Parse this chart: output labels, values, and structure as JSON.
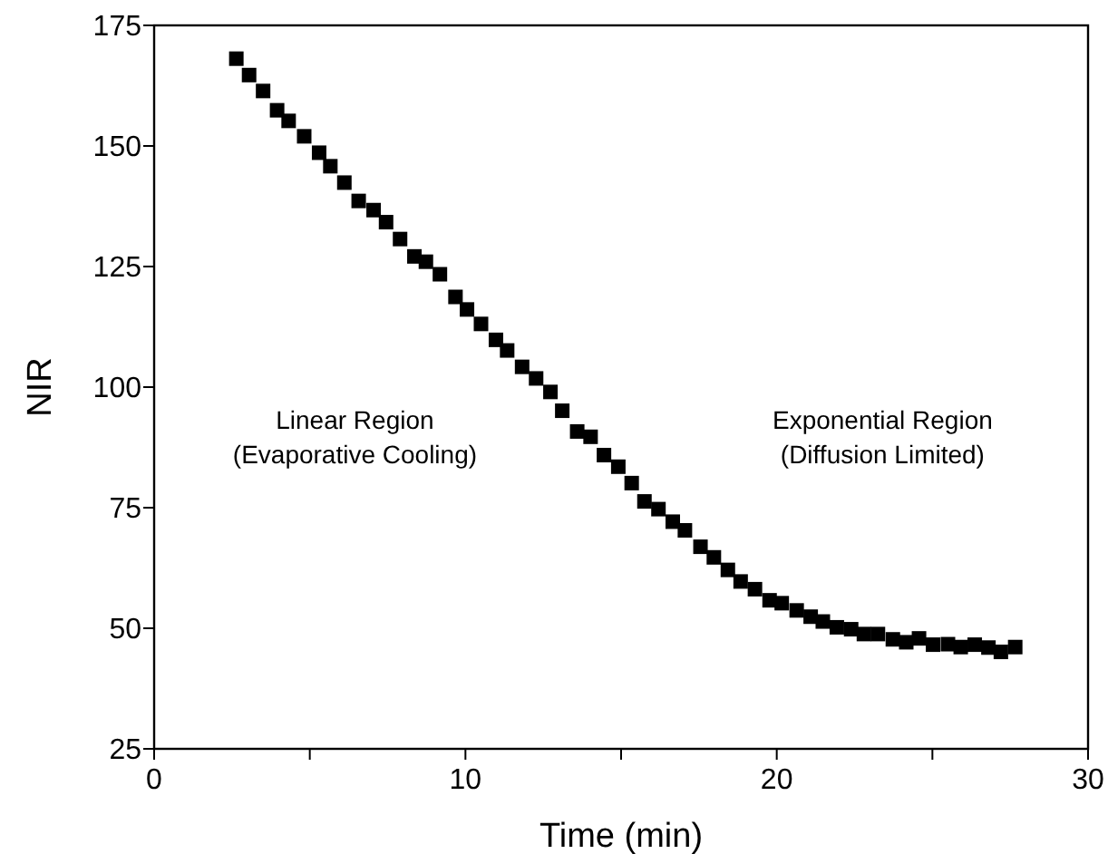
{
  "chart_data": {
    "type": "scatter",
    "xlabel": "Time (min)",
    "ylabel": "NIR",
    "x": [
      2.64,
      3.05,
      3.5,
      3.95,
      4.32,
      4.82,
      5.3,
      5.66,
      6.11,
      6.57,
      7.05,
      7.45,
      7.9,
      8.36,
      8.73,
      9.18,
      9.68,
      10.05,
      10.5,
      10.98,
      11.34,
      11.82,
      12.27,
      12.73,
      13.11,
      13.59,
      14.02,
      14.45,
      14.91,
      15.34,
      15.75,
      16.2,
      16.66,
      17.05,
      17.55,
      17.98,
      18.43,
      18.84,
      19.3,
      19.77,
      20.16,
      20.64,
      21.09,
      21.48,
      21.93,
      22.39,
      22.8,
      23.25,
      23.73,
      24.16,
      24.57,
      25.02,
      25.5,
      25.91,
      26.36,
      26.8,
      27.2,
      27.66
    ],
    "series": [
      {
        "color": "#000000",
        "values": [
          168.1,
          164.7,
          161.4,
          157.4,
          155.2,
          152.0,
          148.6,
          145.8,
          142.4,
          138.6,
          136.7,
          134.2,
          130.7,
          127.1,
          126.0,
          123.4,
          118.7,
          116.1,
          113.1,
          109.8,
          107.6,
          104.2,
          101.8,
          99.0,
          95.1,
          90.8,
          89.7,
          85.9,
          83.5,
          80.1,
          76.3,
          74.7,
          72.1,
          70.3,
          66.9,
          64.7,
          62.1,
          59.7,
          58.1,
          55.8,
          55.2,
          53.7,
          52.4,
          51.4,
          50.2,
          49.8,
          48.8,
          48.8,
          47.7,
          47.1,
          47.9,
          46.6,
          46.7,
          46.1,
          46.6,
          46.0,
          45.1,
          46.1
        ]
      }
    ],
    "xlim": [
      0,
      30
    ],
    "xticks": [
      0,
      {
        "value": 5,
        "label": null
      },
      10,
      {
        "value": 15,
        "label": null
      },
      20,
      {
        "value": 25,
        "label": null
      },
      30
    ],
    "ylim": [
      25,
      175
    ],
    "yticks": [
      25,
      50,
      75,
      100,
      125,
      150,
      175
    ],
    "marker": "square",
    "grid": false,
    "annotations": [
      "Linear Region\n(Evaporative Cooling)",
      "Exponential Region\n(Diffusion Limited)"
    ]
  }
}
